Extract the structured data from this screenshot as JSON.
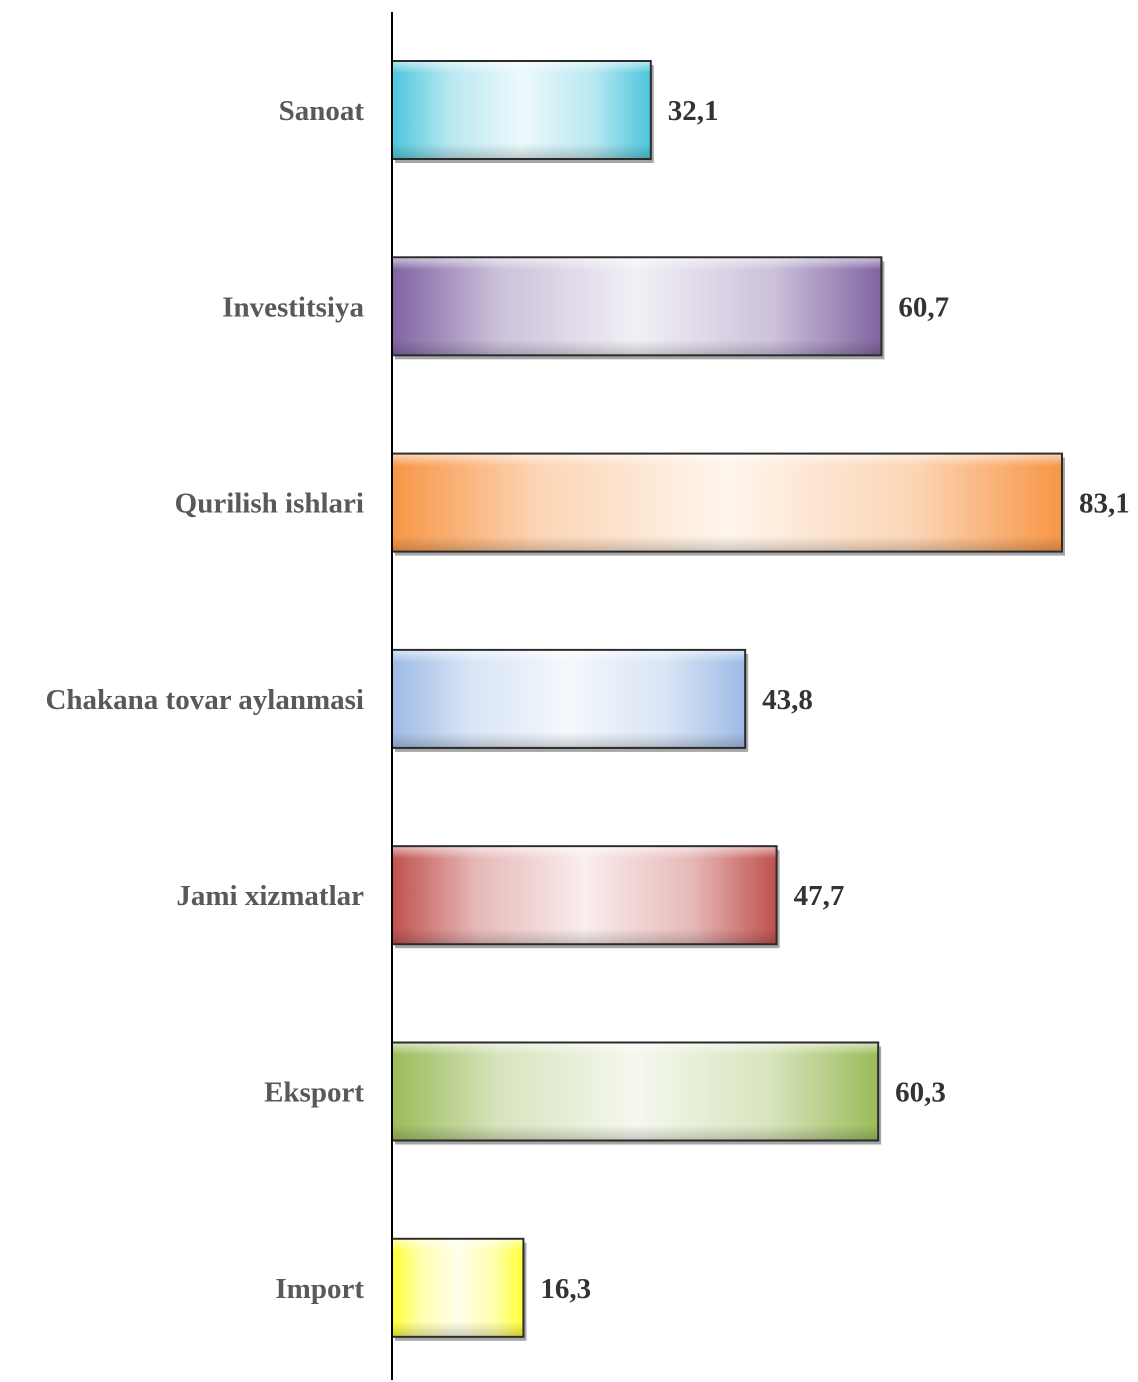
{
  "chart_data": {
    "type": "bar",
    "orientation": "horizontal",
    "title": "",
    "xlabel": "",
    "ylabel": "",
    "xlim": [
      0,
      83.1
    ],
    "grid": false,
    "legend": "none",
    "categories": [
      "Sanoat",
      "Investitsiya",
      "Qurilish ishlari",
      "Chakana tovar aylanmasi",
      "Jami xizmatlar",
      "Eksport",
      "Import"
    ],
    "values": [
      32.1,
      60.7,
      83.1,
      43.8,
      47.7,
      60.3,
      16.3
    ],
    "value_labels": [
      "32,1",
      "60,7",
      "83,1",
      "43,8",
      "47,7",
      "60,3",
      "16,3"
    ],
    "colors": [
      "#4bc6dc",
      "#8064a2",
      "#f79646",
      "#9dbbe6",
      "#c0504d",
      "#9bbb59",
      "#ffff33"
    ]
  }
}
